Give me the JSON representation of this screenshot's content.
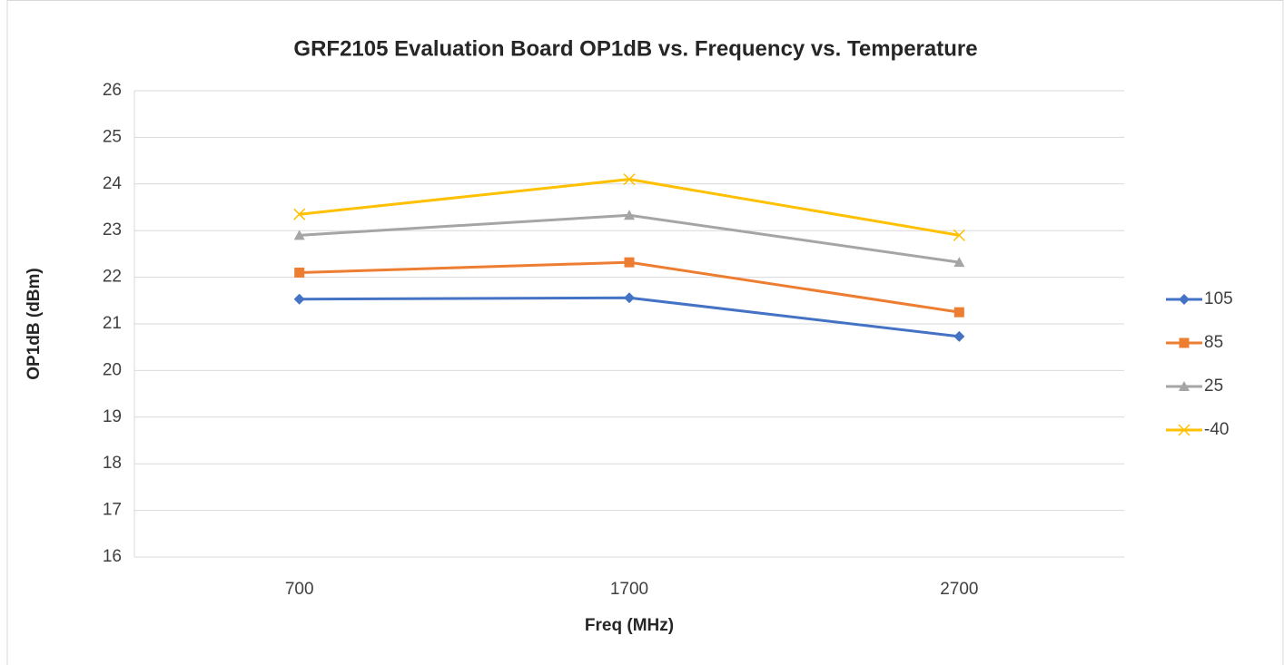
{
  "chart_data": {
    "type": "line",
    "title": "GRF2105 Evaluation Board OP1dB vs. Frequency vs. Temperature",
    "x_label": "Freq (MHz)",
    "y_label": "OP1dB (dBm)",
    "categories": [
      "700",
      "1700",
      "2700"
    ],
    "series": [
      {
        "name": "105",
        "color": "#4472c4",
        "marker": "diamond",
        "values": [
          21.53,
          21.56,
          20.73
        ]
      },
      {
        "name": "85",
        "color": "#ed7d31",
        "marker": "square",
        "values": [
          22.1,
          22.32,
          21.25
        ]
      },
      {
        "name": "25",
        "color": "#a5a5a5",
        "marker": "triangle",
        "values": [
          22.9,
          23.33,
          22.32
        ]
      },
      {
        "name": "-40",
        "color": "#ffc000",
        "marker": "x",
        "values": [
          23.35,
          24.1,
          22.9
        ]
      }
    ],
    "ylim": [
      16,
      26
    ],
    "yticks": [
      16,
      17,
      18,
      19,
      20,
      21,
      22,
      23,
      24,
      25,
      26
    ],
    "grid": true,
    "legend": "right"
  }
}
